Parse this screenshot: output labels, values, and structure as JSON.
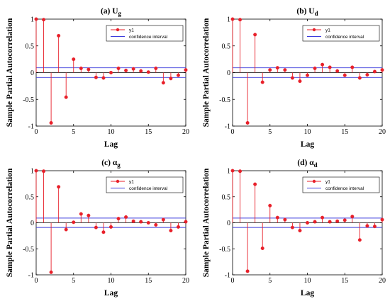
{
  "colors": {
    "stem": "#e8202a",
    "confidence": "#3c3cdc",
    "axis": "#000000"
  },
  "legend": {
    "series_label": "y1",
    "confidence_label": "confidence interval",
    "placement": "top-right"
  },
  "chart_data": [
    {
      "type": "stem",
      "title": "(a) U",
      "title_sub": "g",
      "xlabel": "Lag",
      "ylabel": "Sample Partial Autocorrelation",
      "xlim": [
        0,
        20
      ],
      "ylim": [
        -1,
        1
      ],
      "xticks": [
        "0",
        "5",
        "10",
        "15",
        "20"
      ],
      "yticks": [
        "-1",
        "-0.5",
        "0",
        "0.5",
        "1"
      ],
      "confidence_bound": 0.09,
      "x": [
        0,
        1,
        2,
        3,
        4,
        5,
        6,
        7,
        8,
        9,
        10,
        11,
        12,
        13,
        14,
        15,
        16,
        17,
        18,
        19,
        20
      ],
      "values": [
        1.0,
        0.99,
        -0.94,
        0.69,
        -0.46,
        0.25,
        0.08,
        0.06,
        -0.09,
        -0.1,
        0.0,
        0.08,
        0.04,
        0.07,
        0.03,
        0.01,
        0.08,
        -0.19,
        -0.11,
        -0.05,
        0.05
      ]
    },
    {
      "type": "stem",
      "title": "(b) U",
      "title_sub": "d",
      "xlabel": "Lag",
      "ylabel": "Sample Partial Autocorrelation",
      "xlim": [
        0,
        20
      ],
      "ylim": [
        -1,
        1
      ],
      "xticks": [
        "0",
        "5",
        "10",
        "15",
        "20"
      ],
      "yticks": [
        "-1",
        "-0.5",
        "0",
        "0.5",
        "1"
      ],
      "confidence_bound": 0.09,
      "x": [
        0,
        1,
        2,
        3,
        4,
        5,
        6,
        7,
        8,
        9,
        10,
        11,
        12,
        13,
        14,
        15,
        16,
        17,
        18,
        19,
        20
      ],
      "values": [
        1.0,
        0.99,
        -0.94,
        0.71,
        -0.18,
        0.05,
        0.09,
        0.05,
        -0.1,
        -0.16,
        -0.05,
        0.08,
        0.15,
        0.1,
        0.03,
        -0.05,
        0.1,
        -0.1,
        -0.04,
        0.02,
        0.05
      ]
    },
    {
      "type": "stem",
      "title": "(c) α",
      "title_sub": "g",
      "xlabel": "Lag",
      "ylabel": "Sample Partial Autocorrelation",
      "xlim": [
        0,
        20
      ],
      "ylim": [
        -1,
        1
      ],
      "xticks": [
        "0",
        "5",
        "10",
        "15",
        "20"
      ],
      "yticks": [
        "-1",
        "-0.5",
        "0",
        "0.5",
        "1"
      ],
      "confidence_bound": 0.09,
      "x": [
        0,
        1,
        2,
        3,
        4,
        5,
        6,
        7,
        8,
        9,
        10,
        11,
        12,
        13,
        14,
        15,
        16,
        17,
        18,
        19,
        20
      ],
      "values": [
        1.0,
        0.99,
        -0.95,
        0.69,
        -0.13,
        0.01,
        0.17,
        0.14,
        -0.09,
        -0.18,
        -0.08,
        0.08,
        0.11,
        0.03,
        0.02,
        0.0,
        -0.04,
        0.06,
        -0.15,
        -0.08,
        0.02
      ]
    },
    {
      "type": "stem",
      "title": "(d) α",
      "title_sub": "d",
      "xlabel": "Lag",
      "ylabel": "Sample Partial Autocorrelation",
      "xlim": [
        0,
        20
      ],
      "ylim": [
        -1,
        1
      ],
      "xticks": [
        "0",
        "5",
        "10",
        "15",
        "20"
      ],
      "yticks": [
        "-1",
        "-0.5",
        "0",
        "0.5",
        "1"
      ],
      "confidence_bound": 0.09,
      "x": [
        0,
        1,
        2,
        3,
        4,
        5,
        6,
        7,
        8,
        9,
        10,
        11,
        12,
        13,
        14,
        15,
        16,
        17,
        18,
        19,
        20
      ],
      "values": [
        1.0,
        0.99,
        -0.93,
        0.74,
        -0.49,
        0.33,
        0.1,
        0.06,
        -0.09,
        -0.15,
        0.0,
        0.02,
        0.1,
        0.02,
        0.03,
        0.05,
        0.12,
        -0.33,
        -0.06,
        -0.07,
        0.06
      ]
    }
  ]
}
